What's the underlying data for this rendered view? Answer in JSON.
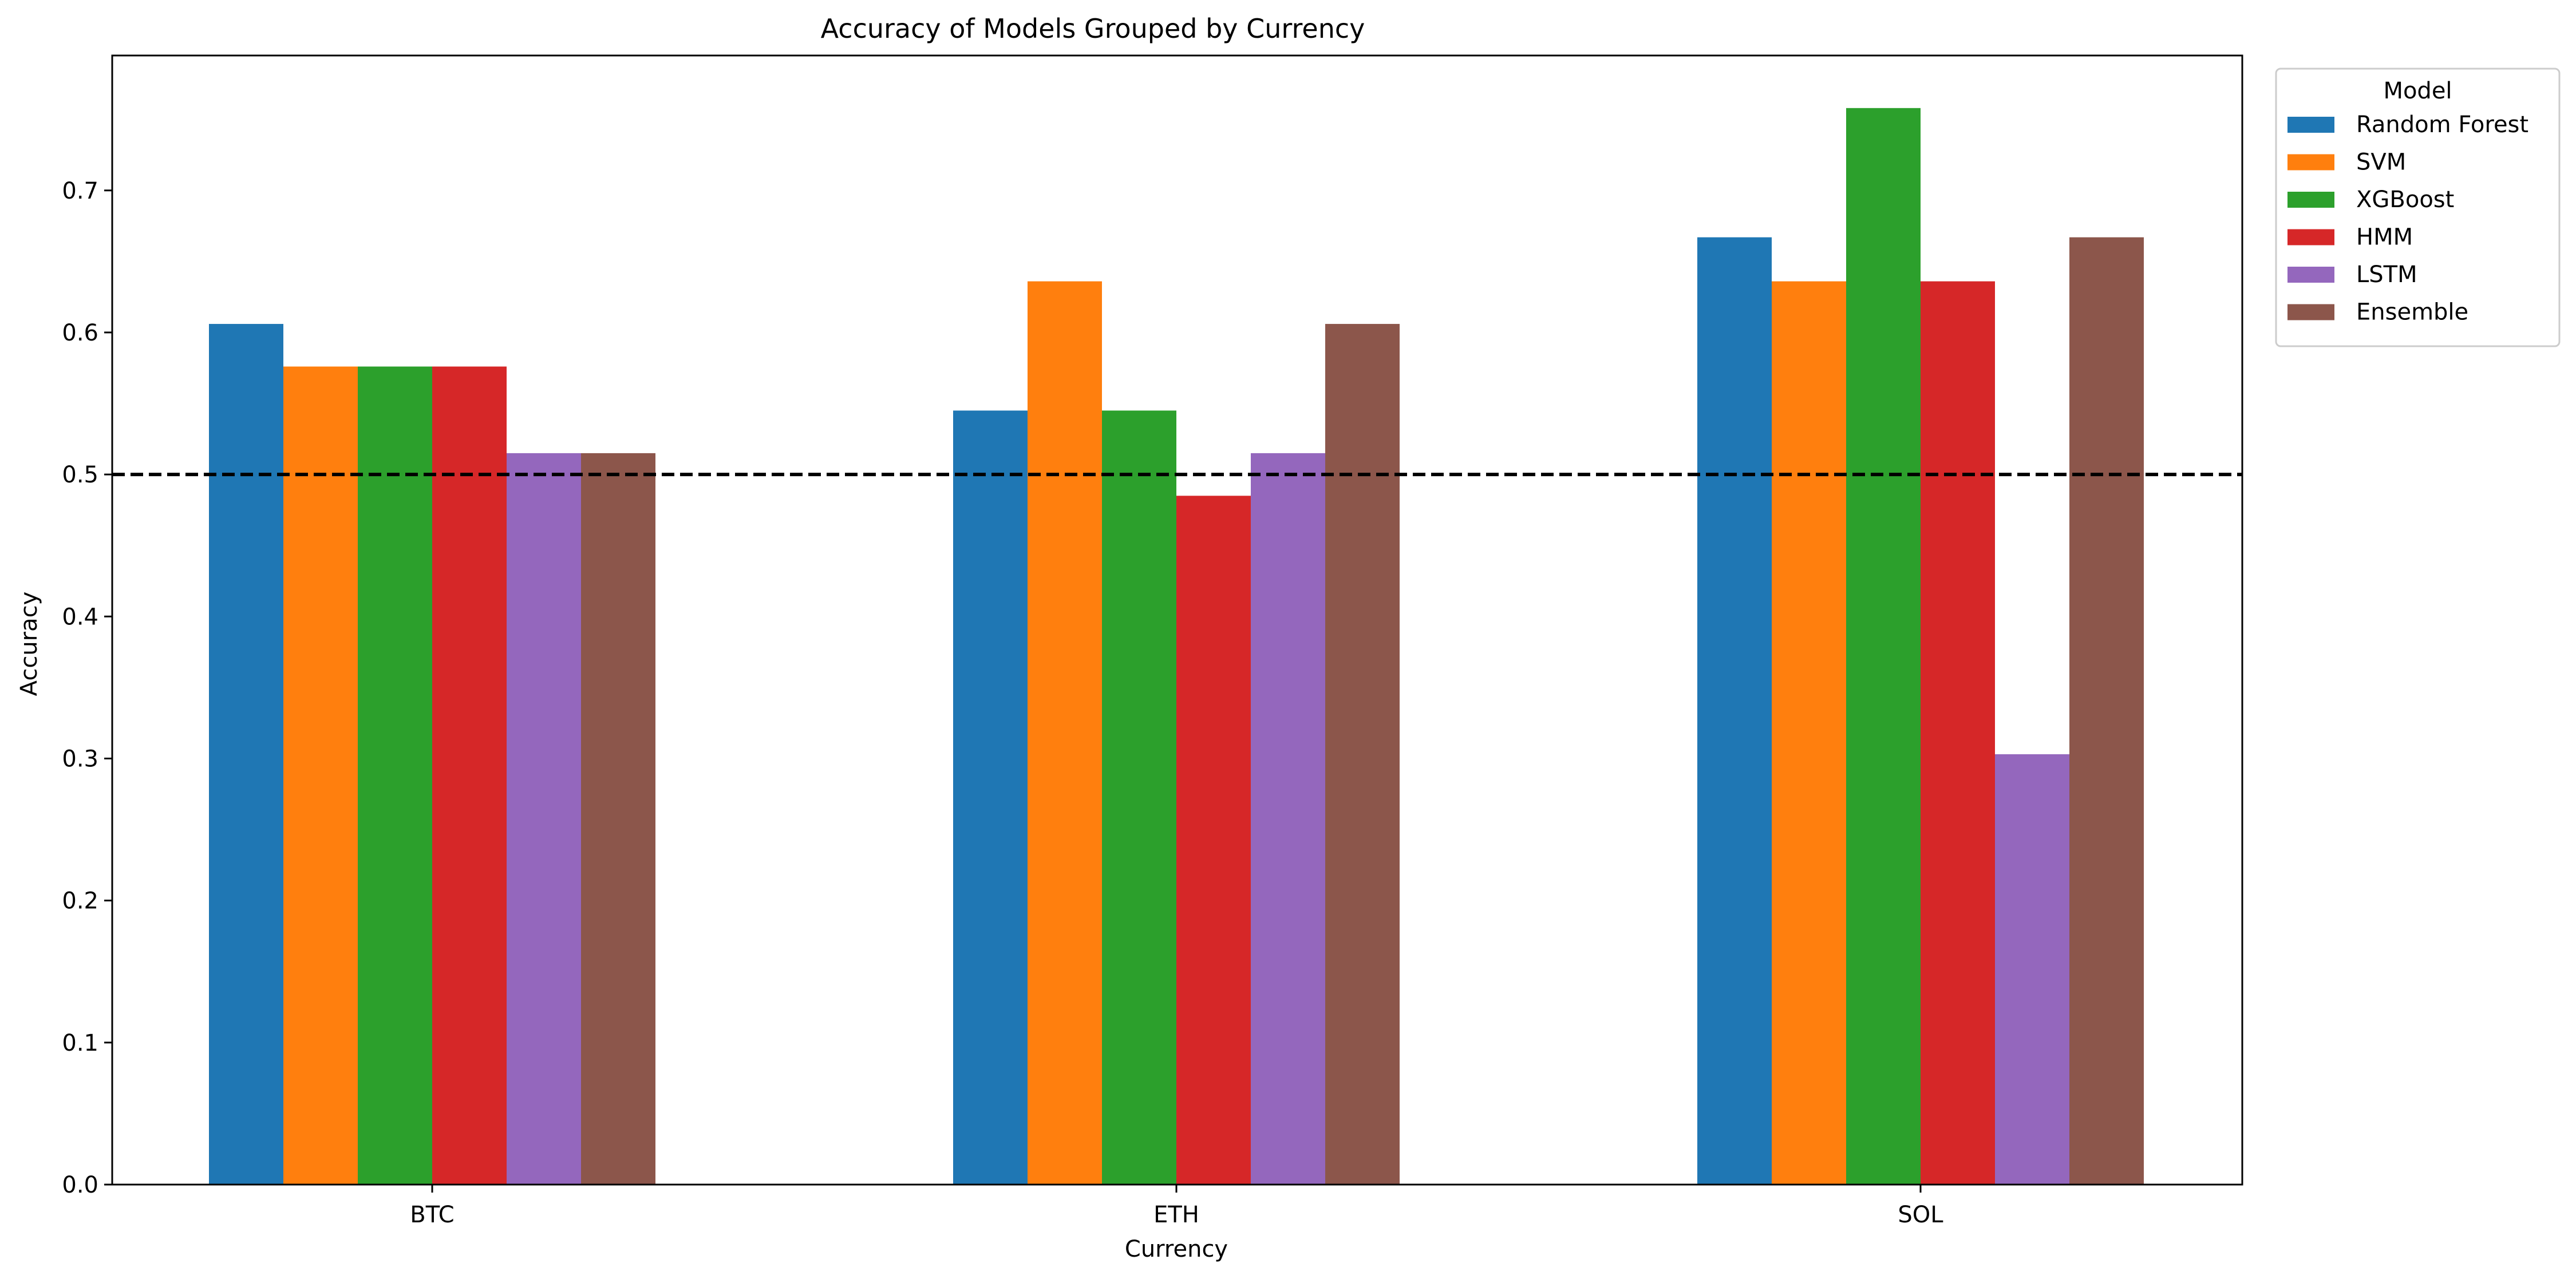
{
  "chart_data": {
    "type": "bar",
    "title": "Accuracy of Models Grouped by Currency",
    "xlabel": "Currency",
    "ylabel": "Accuracy",
    "categories": [
      "BTC",
      "ETH",
      "SOL"
    ],
    "ylim": [
      0,
      0.795
    ],
    "yticks": [
      0.0,
      0.1,
      0.2,
      0.3,
      0.4,
      0.5,
      0.6,
      0.7
    ],
    "ytick_labels": [
      "0.0",
      "0.1",
      "0.2",
      "0.3",
      "0.4",
      "0.5",
      "0.6",
      "0.7"
    ],
    "reference_line": {
      "value": 0.5,
      "style": "dashed",
      "color": "#000000"
    },
    "grid": false,
    "legend": {
      "title": "Model",
      "placement": "outside-top-right"
    },
    "series": [
      {
        "name": "Random Forest",
        "color": "#1f77b4",
        "values": [
          0.606,
          0.545,
          0.667
        ]
      },
      {
        "name": "SVM",
        "color": "#ff7f0e",
        "values": [
          0.576,
          0.636,
          0.636
        ]
      },
      {
        "name": "XGBoost",
        "color": "#2ca02c",
        "values": [
          0.576,
          0.545,
          0.758
        ]
      },
      {
        "name": "HMM",
        "color": "#d62728",
        "values": [
          0.576,
          0.485,
          0.636
        ]
      },
      {
        "name": "LSTM",
        "color": "#9467bd",
        "values": [
          0.515,
          0.515,
          0.303
        ]
      },
      {
        "name": "Ensemble",
        "color": "#8c564b",
        "values": [
          0.515,
          0.606,
          0.667
        ]
      }
    ]
  }
}
